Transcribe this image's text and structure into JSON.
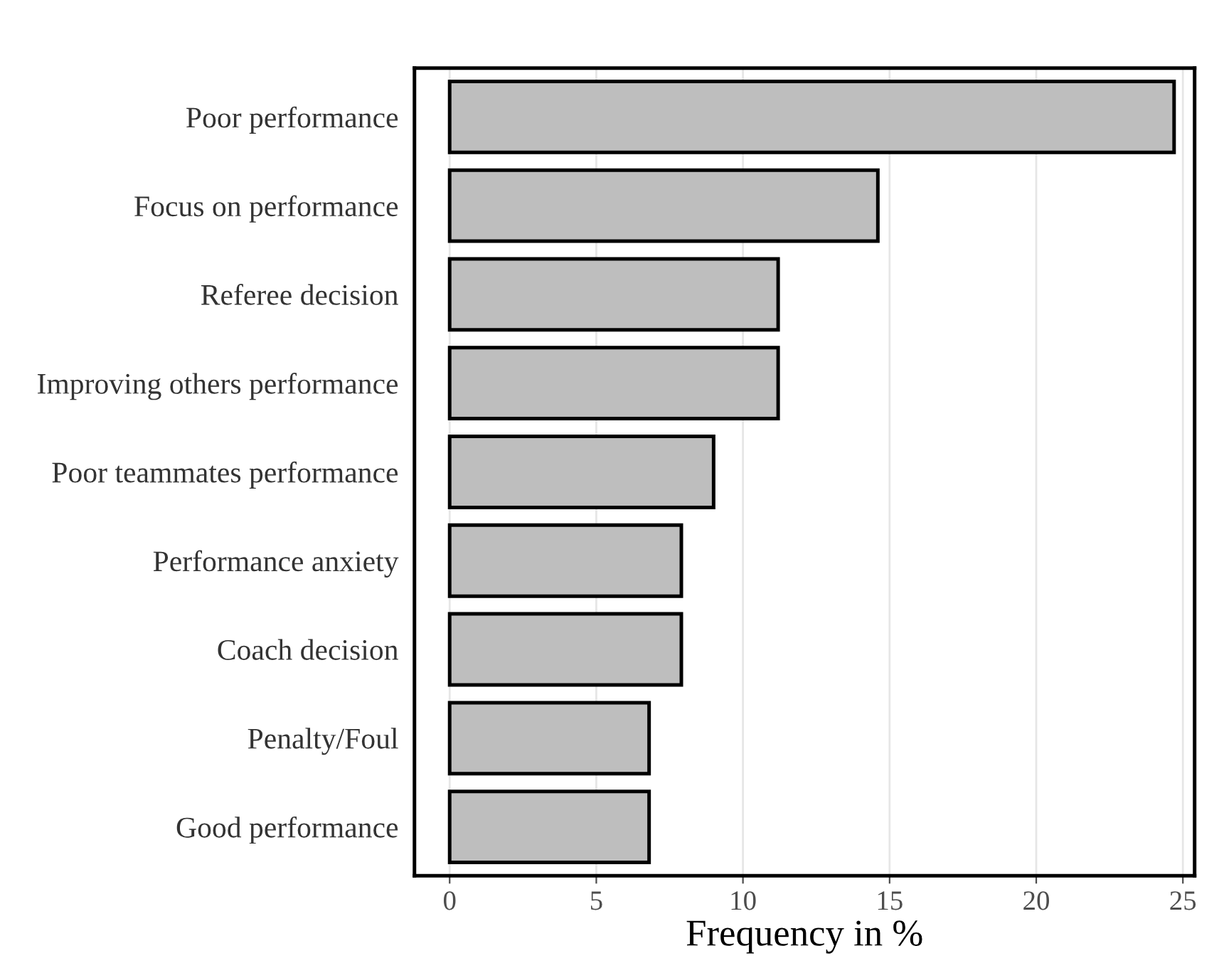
{
  "chart_data": {
    "type": "bar",
    "orientation": "horizontal",
    "xlabel": "Frequency in %",
    "categories": [
      "Poor performance",
      "Focus on performance",
      "Referee decision",
      "Improving others performance",
      "Poor teammates performance",
      "Performance anxiety",
      "Coach decision",
      "Penalty/Foul",
      "Good performance"
    ],
    "values": [
      24.7,
      14.6,
      11.2,
      11.2,
      9.0,
      7.9,
      7.9,
      6.8,
      6.8
    ],
    "color": "#bebebe",
    "xlim": [
      -1.2,
      25.4
    ],
    "xticks": [
      0,
      5,
      10,
      15,
      20,
      25
    ],
    "grid": "x"
  }
}
